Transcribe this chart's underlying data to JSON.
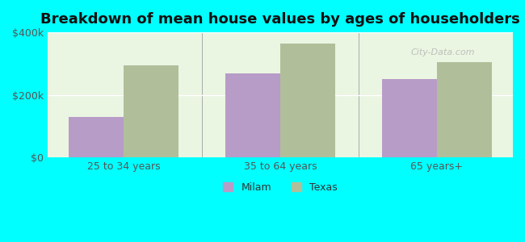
{
  "title": "Breakdown of mean house values by ages of householders",
  "categories": [
    "25 to 34 years",
    "35 to 64 years",
    "65 years+"
  ],
  "milam_values": [
    130000,
    270000,
    250000
  ],
  "texas_values": [
    295000,
    365000,
    305000
  ],
  "milam_color": "#b89cc8",
  "texas_color": "#b0bf9a",
  "background_color": "#00ffff",
  "plot_bg_color": "#eaf5e2",
  "ylim": [
    0,
    400000
  ],
  "yticks": [
    0,
    200000,
    400000
  ],
  "ytick_labels": [
    "$0",
    "$200k",
    "$400k"
  ],
  "legend_milam": "Milam",
  "legend_texas": "Texas",
  "bar_width": 0.35,
  "title_fontsize": 13,
  "tick_fontsize": 9,
  "legend_fontsize": 9
}
